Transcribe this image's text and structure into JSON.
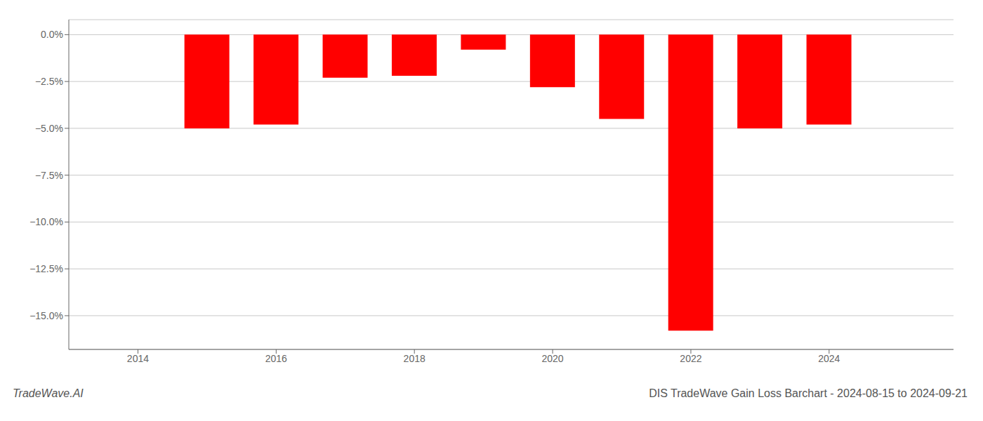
{
  "chart_data": {
    "type": "bar",
    "title": "DIS TradeWave Gain Loss Barchart - 2024-08-15 to 2024-09-21",
    "annotations": [
      "TradeWave.AI"
    ],
    "x": [
      2015,
      2016,
      2017,
      2018,
      2019,
      2020,
      2021,
      2022,
      2023,
      2024
    ],
    "values": [
      -5.0,
      -4.8,
      -2.3,
      -2.2,
      -0.8,
      -2.8,
      -4.5,
      -15.8,
      -5.0,
      -4.8
    ],
    "color": "#ff0000",
    "xlim": [
      2013.0,
      2025.8
    ],
    "xticks": [
      2014,
      2016,
      2018,
      2020,
      2022,
      2024
    ],
    "ylim": [
      -16.8,
      0.8
    ],
    "yticks": [
      {
        "value": 0.0,
        "label": "0.0%"
      },
      {
        "value": -2.5,
        "label": "−2.5%"
      },
      {
        "value": -5.0,
        "label": "−5.0%"
      },
      {
        "value": -7.5,
        "label": "−7.5%"
      },
      {
        "value": -10.0,
        "label": "−10.0%"
      },
      {
        "value": -12.5,
        "label": "−12.5%"
      },
      {
        "value": -15.0,
        "label": "−15.0%"
      }
    ],
    "grid": true
  }
}
